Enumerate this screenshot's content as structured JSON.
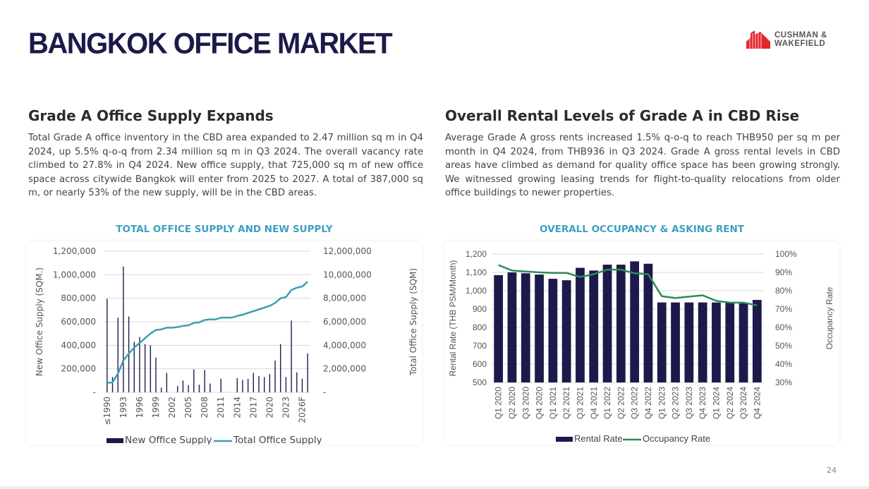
{
  "header": {
    "title": "BANGKOK OFFICE MARKET",
    "logo_text": [
      "CUSHMAN &",
      "WAKEFIELD"
    ],
    "brand_color": "#e4262e"
  },
  "left": {
    "heading": "Grade A Office Supply Expands",
    "body": "Total Grade A office inventory in the CBD area expanded to 2.47 million sq m in Q4 2024, up 5.5% q-o-q from 2.34 million sq m in Q3 2024. The overall vacancy rate climbed to 27.8% in Q4 2024. New office supply, that 725,000 sq m of new office space across citywide Bangkok will enter from 2025 to 2027. A total of 387,000 sq m, or nearly 53% of the new supply, will be in the CBD areas."
  },
  "right": {
    "heading": "Overall Rental Levels of Grade A in CBD Rise",
    "body": "Average Grade A gross rents increased 1.5% q-o-q to reach THB950 per sq m per month in Q4 2024, from THB936 in Q3 2024. Grade A gross rental levels in CBD areas have climbed as demand for quality office space has been growing strongly. We witnessed growing leasing trends for flight-to-quality relocations from older office buildings to newer properties."
  },
  "page_number": "24",
  "chart_data": [
    {
      "type": "bar",
      "title": "TOTAL OFFICE SUPPLY AND NEW SUPPLY",
      "ylabel": "New Office Supply (SQM.)",
      "y2label": "Total Office Supply (SQM)",
      "ylim": [
        0,
        1200000
      ],
      "y2lim": [
        0,
        12000000
      ],
      "yticks": [
        "-",
        "200,000",
        "400,000",
        "600,000",
        "800,000",
        "1,000,000",
        "1,200,000"
      ],
      "y2ticks": [
        "-",
        "2,000,000",
        "4,000,000",
        "6,000,000",
        "8,000,000",
        "10,000,000",
        "12,000,000"
      ],
      "categories": [
        "≤1990",
        "1991",
        "1992",
        "1993",
        "1994",
        "1995",
        "1996",
        "1997",
        "1998",
        "1999",
        "2000",
        "2001",
        "2002",
        "2003",
        "2004",
        "2005",
        "2006",
        "2007",
        "2008",
        "2009",
        "2010",
        "2011",
        "2012",
        "2013",
        "2014",
        "2015",
        "2016",
        "2017",
        "2018",
        "2019",
        "2020",
        "2021",
        "2022",
        "2023",
        "2024",
        "2025",
        "2026F",
        "2027F"
      ],
      "xtick_labels": [
        "≤1990",
        "",
        "",
        "1993",
        "",
        "",
        "1996",
        "",
        "",
        "1999",
        "",
        "",
        "2002",
        "",
        "",
        "2005",
        "",
        "",
        "2008",
        "",
        "",
        "2011",
        "",
        "",
        "2014",
        "",
        "",
        "2017",
        "",
        "",
        "2020",
        "",
        "",
        "2023",
        "",
        "",
        "2026F",
        ""
      ],
      "series": [
        {
          "name": "New Office Supply",
          "type": "bar",
          "axis": "left",
          "color": "#1c1a4a",
          "values": [
            795000,
            130000,
            635000,
            1070000,
            645000,
            430000,
            470000,
            410000,
            400000,
            295000,
            40000,
            165000,
            0,
            55000,
            100000,
            60000,
            195000,
            65000,
            190000,
            75000,
            0,
            115000,
            0,
            0,
            120000,
            105000,
            115000,
            165000,
            140000,
            130000,
            155000,
            270000,
            410000,
            130000,
            610000,
            170000,
            115000,
            330000
          ]
        },
        {
          "name": "Total Office Supply",
          "type": "line",
          "axis": "right",
          "color": "#3e9fb3",
          "values": [
            800000,
            850000,
            1600000,
            2700000,
            3300000,
            3800000,
            4200000,
            4600000,
            5000000,
            5300000,
            5350000,
            5500000,
            5500000,
            5550000,
            5650000,
            5700000,
            5900000,
            5950000,
            6150000,
            6200000,
            6200000,
            6350000,
            6350000,
            6350000,
            6500000,
            6600000,
            6750000,
            6900000,
            7050000,
            7200000,
            7350000,
            7600000,
            8000000,
            8100000,
            8700000,
            8900000,
            9000000,
            9400000
          ]
        }
      ],
      "legend": "bottom",
      "grid": true
    },
    {
      "type": "bar",
      "title": "OVERALL OCCUPANCY & ASKING RENT",
      "ylabel": "Rental Rate (THB PSM/Month)",
      "y2label": "Occupancy Rate",
      "ylim": [
        500,
        1200
      ],
      "y2lim": [
        30,
        100
      ],
      "yticks": [
        "500",
        "600",
        "700",
        "800",
        "900",
        "1,000",
        "1,100",
        "1,200"
      ],
      "y2ticks": [
        "30%",
        "40%",
        "50%",
        "60%",
        "70%",
        "80%",
        "90%",
        "100%"
      ],
      "categories": [
        "Q1 2020",
        "Q2 2020",
        "Q3 2020",
        "Q4 2020",
        "Q1 2021",
        "Q2 2021",
        "Q3 2021",
        "Q4 2021",
        "Q1 2022",
        "Q2 2022",
        "Q3 2022",
        "Q4 2022",
        "Q1 2023",
        "Q2 2023",
        "Q3 2023",
        "Q4 2023",
        "Q1 2024",
        "Q2 2024",
        "Q3 2024",
        "Q4 2024"
      ],
      "series": [
        {
          "name": "Rental Rate",
          "type": "bar",
          "axis": "left",
          "color": "#1c1a4a",
          "values": [
            1085,
            1100,
            1095,
            1088,
            1065,
            1057,
            1125,
            1110,
            1142,
            1142,
            1160,
            1147,
            936,
            936,
            936,
            936,
            936,
            936,
            936,
            950
          ]
        },
        {
          "name": "Occupancy Rate",
          "type": "line",
          "axis": "right",
          "color": "#2e8b57",
          "values": [
            94,
            91,
            90.5,
            90,
            89.7,
            89.7,
            87.5,
            89,
            91.5,
            91.5,
            89.5,
            89,
            77,
            76,
            76.8,
            77.5,
            74.5,
            73.5,
            73.5,
            72
          ]
        }
      ],
      "legend": "bottom",
      "grid": true
    }
  ]
}
